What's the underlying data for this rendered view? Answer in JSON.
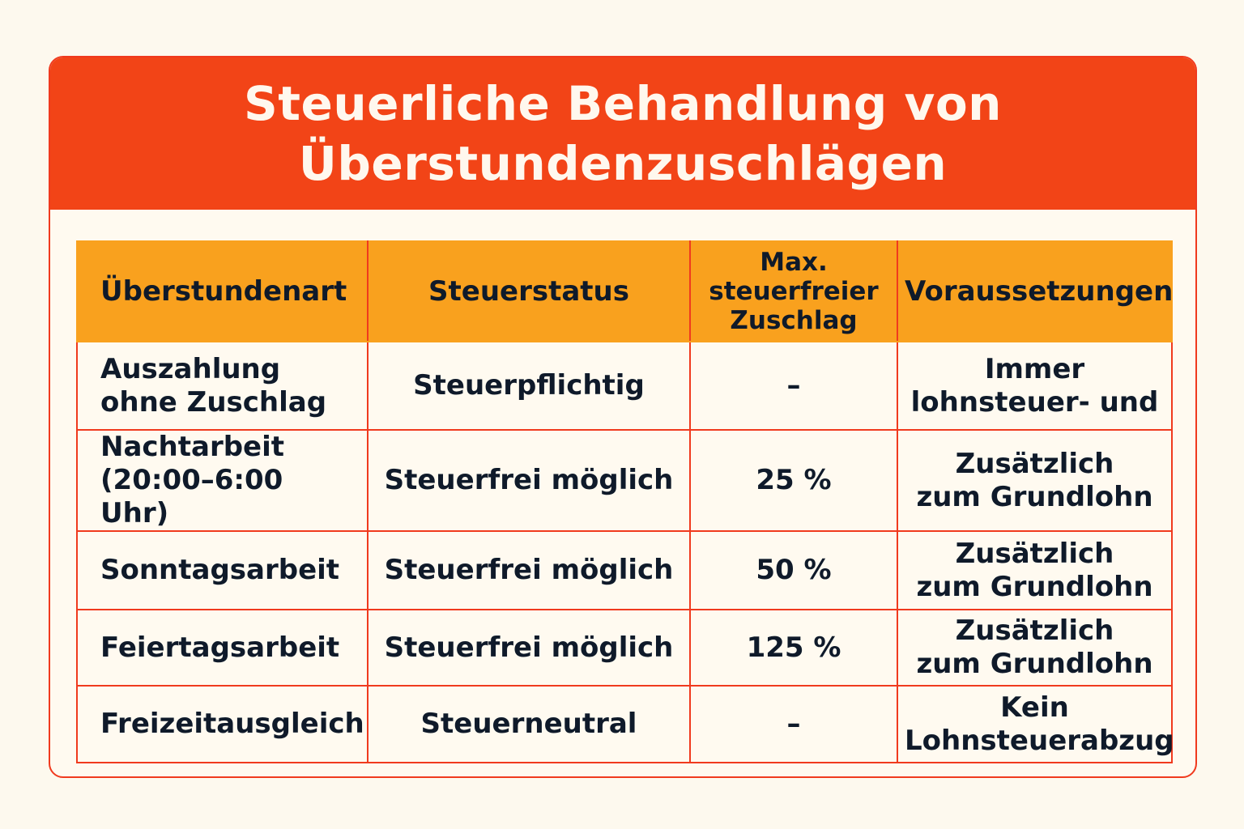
{
  "title": "Steuerliche Behandlung von\nÜberstundenzuschlägen",
  "colors": {
    "background": "#fdf9ee",
    "banner": "#f24417",
    "header_row": "#f9a11e",
    "border": "#f03a1e",
    "text": "#0f1a2a"
  },
  "table": {
    "headers": [
      "Überstundenart",
      "Steuerstatus",
      "Max.\nsteuerfreier\nZuschlag",
      "Voraussetzungen"
    ],
    "rows": [
      [
        "Auszahlung\nohne Zuschlag",
        "Steuerpflichtig",
        "–",
        "Immer\nlohnsteuer- und"
      ],
      [
        "Nachtarbeit\n(20:00–6:00 Uhr)",
        "Steuerfrei möglich",
        "25 %",
        "Zusätzlich\nzum Grundlohn"
      ],
      [
        "Sonntagsarbeit",
        "Steuerfrei möglich",
        "50 %",
        "Zusätzlich\nzum Grundlohn"
      ],
      [
        "Feiertagsarbeit",
        "Steuerfrei möglich",
        "125 %",
        "Zusätzlich\nzum Grundlohn"
      ],
      [
        "Freizeitausgleich",
        "Steuerneutral",
        "–",
        "Kein\nLohnsteuerabzug"
      ]
    ]
  }
}
